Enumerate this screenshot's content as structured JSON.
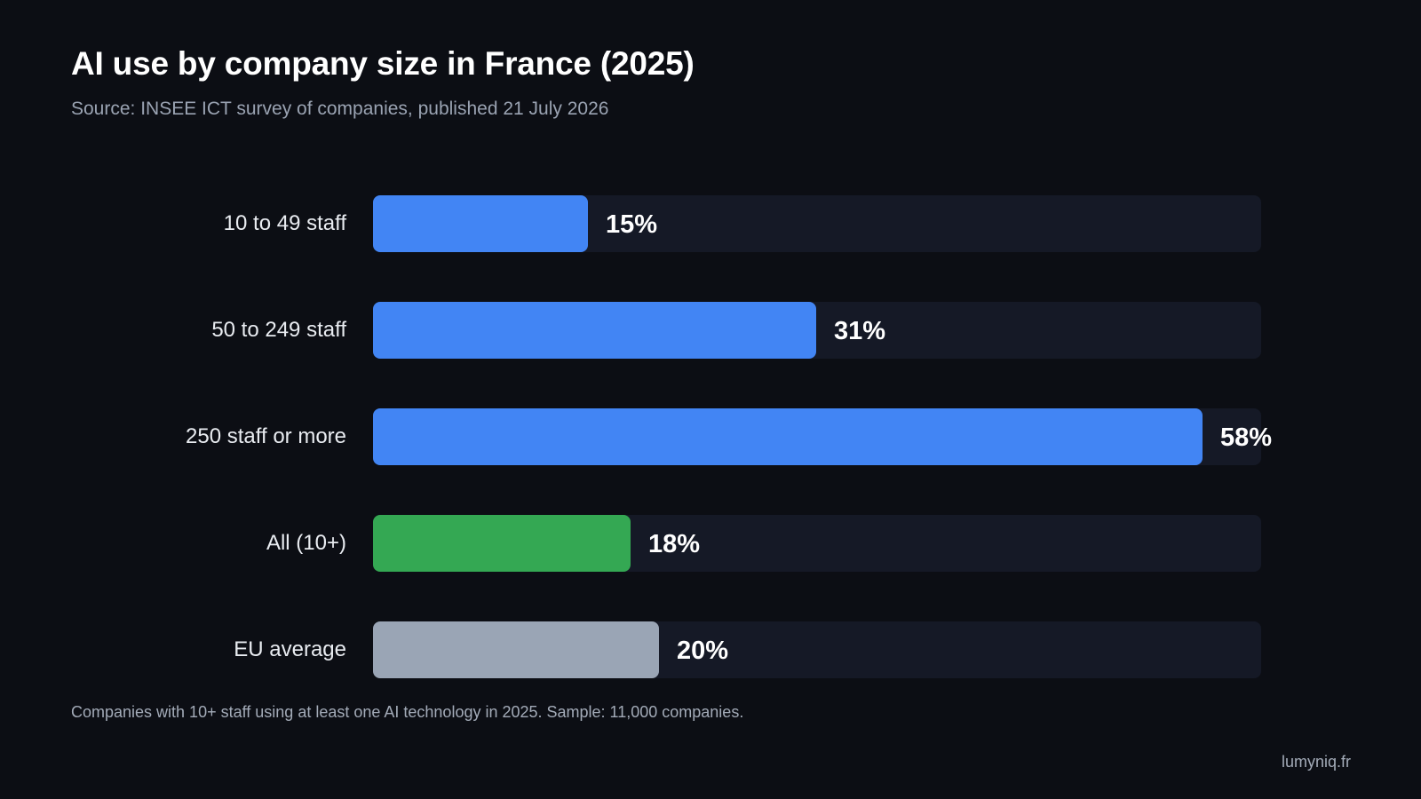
{
  "chart_data": {
    "type": "bar",
    "orientation": "horizontal",
    "title": "AI use by company size in France (2025)",
    "subtitle": "Source: INSEE ICT survey of companies, published 21 July 2026",
    "xlim": [
      0,
      60
    ],
    "grid": false,
    "value_suffix": "%",
    "categories": [
      "10 to 49 staff",
      "50 to 249 staff",
      "250 staff or more",
      "All (10+)",
      "EU average"
    ],
    "values": [
      15,
      31,
      58,
      18,
      20
    ],
    "value_labels": [
      "15%",
      "31%",
      "58%",
      "18%",
      "20%"
    ],
    "bar_colors": [
      "#4285f4",
      "#4285f4",
      "#4285f4",
      "#34a853",
      "#9aa5b5"
    ],
    "track_color": "#151926",
    "footnote": "Companies with 10+ staff using at least one AI technology in 2025. Sample: 11,000 companies."
  },
  "branding": {
    "site": "lumyniq.fr"
  },
  "colors": {
    "background": "#0c0e14",
    "title": "#ffffff",
    "muted_text": "#9aa3b2"
  }
}
